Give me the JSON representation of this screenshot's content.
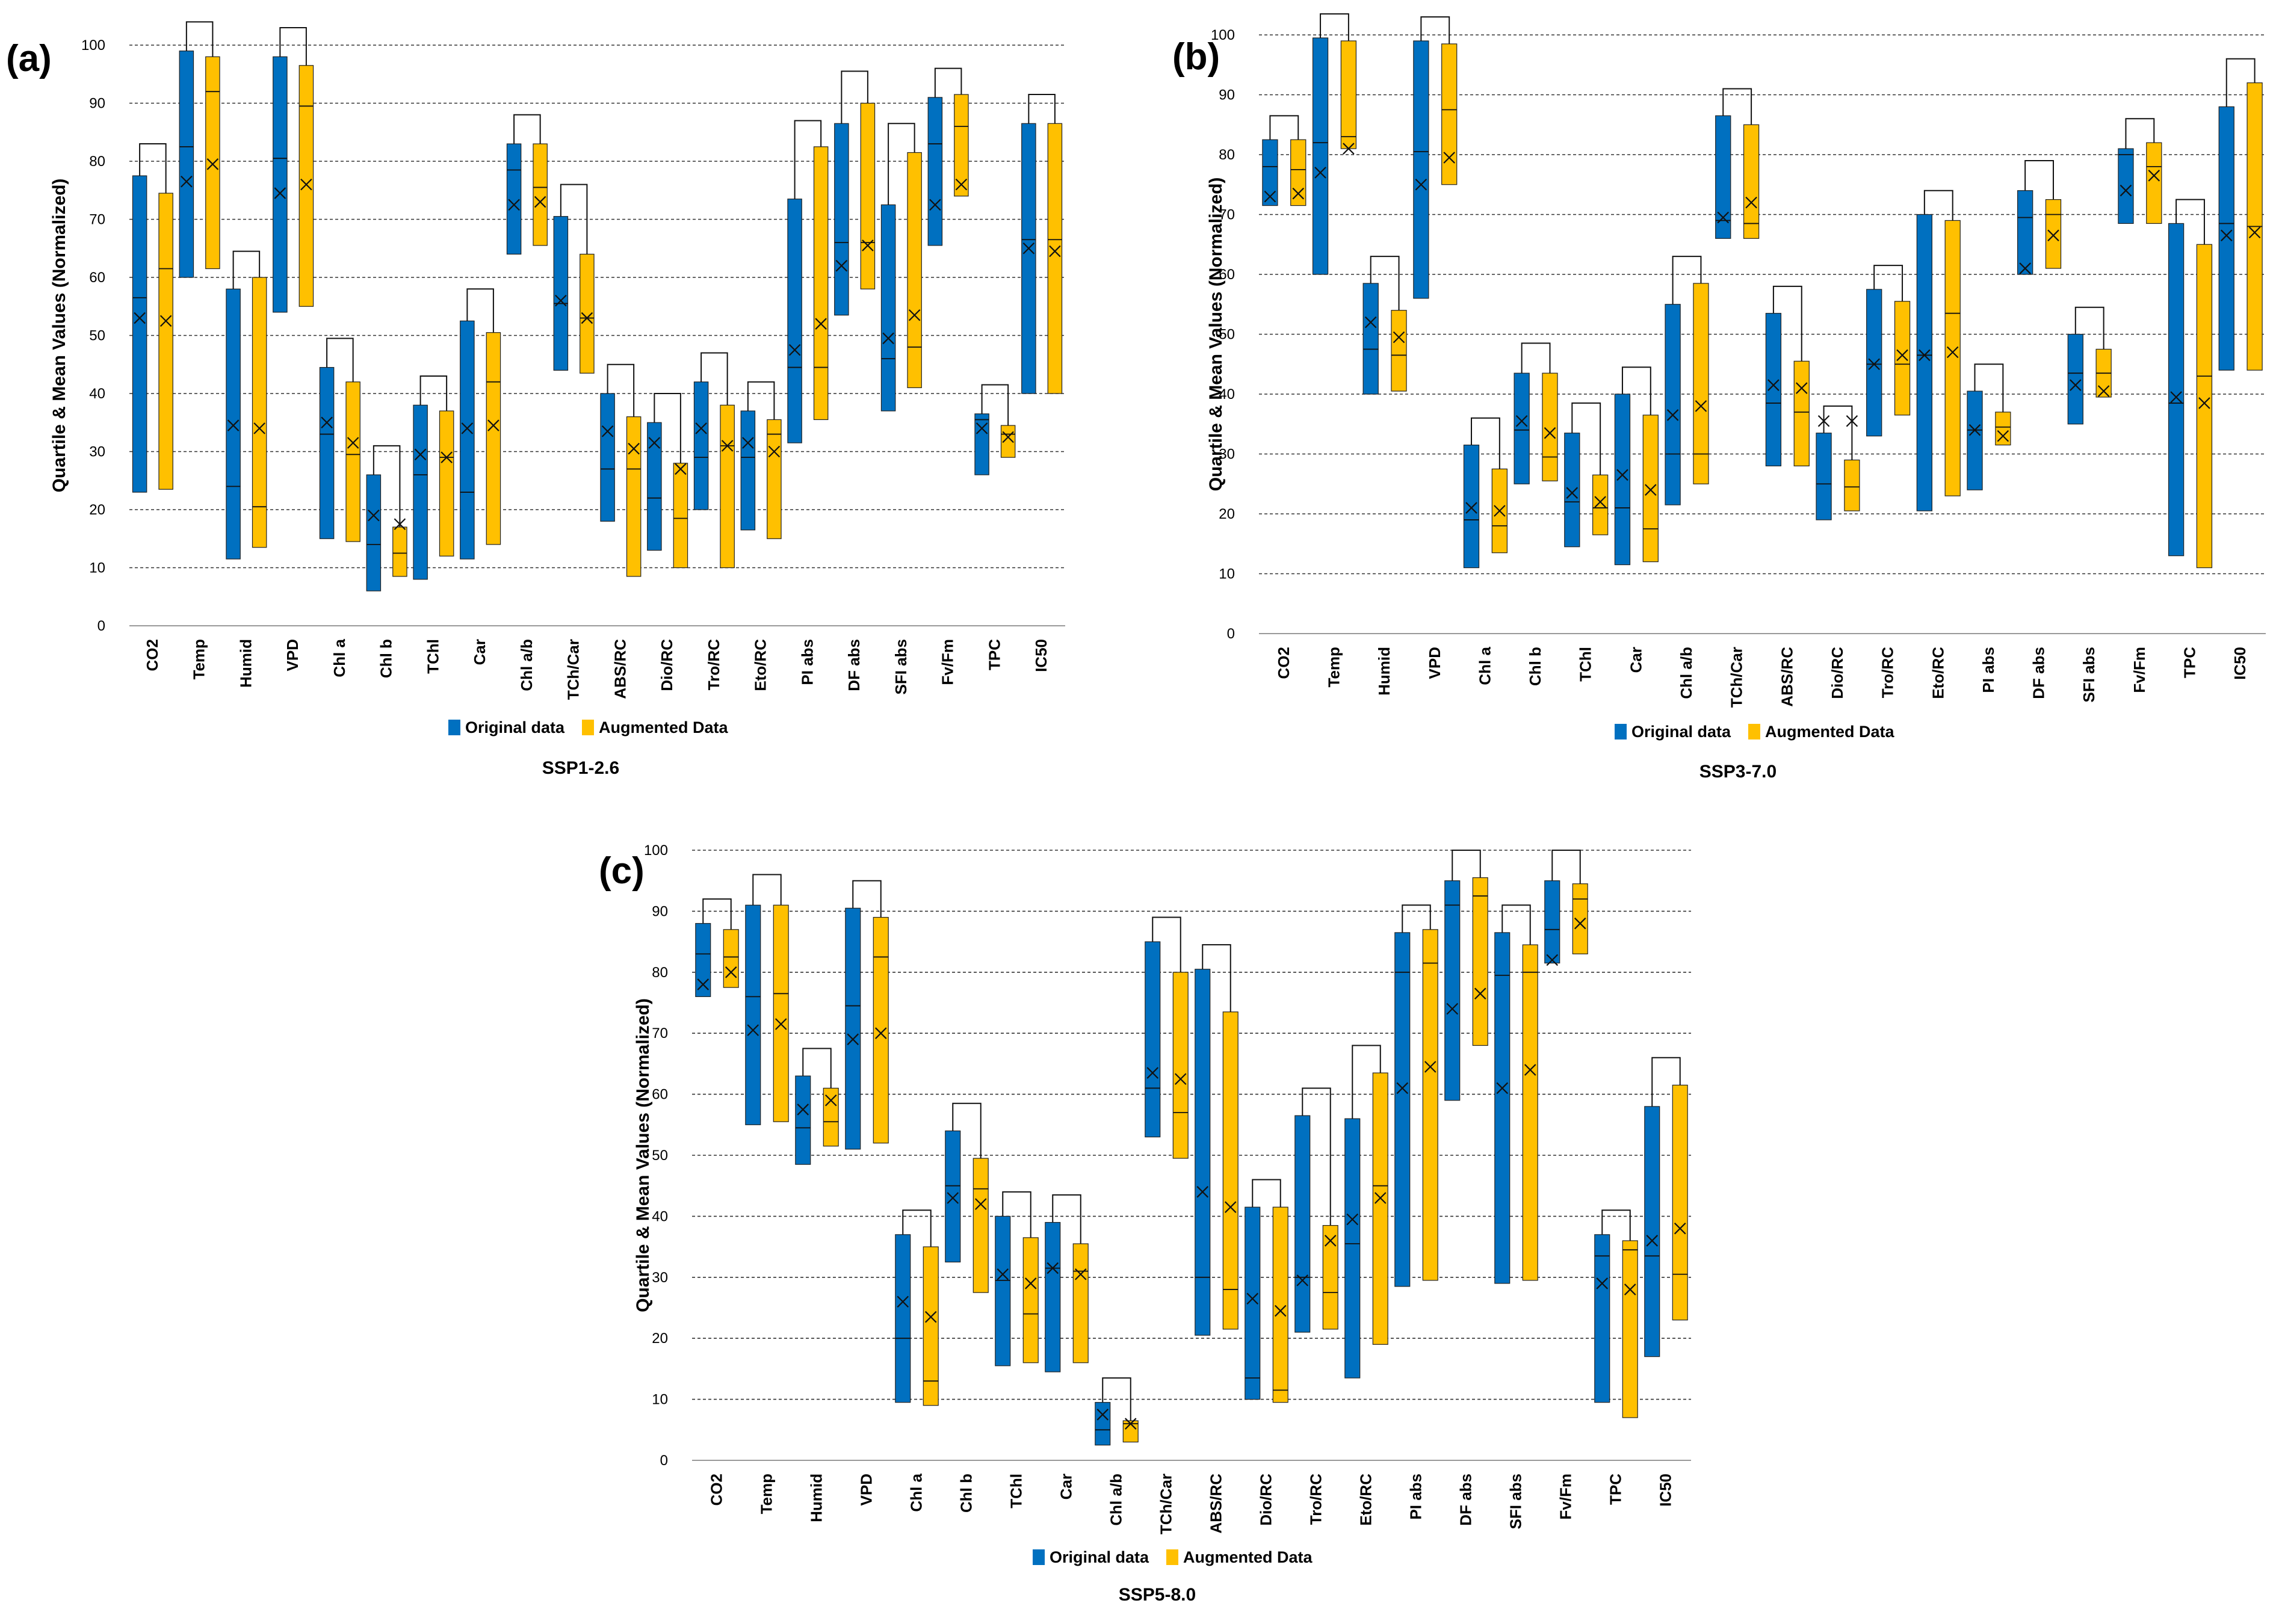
{
  "legend": {
    "original_label": "Original data",
    "augmented_label": "Augmented Data",
    "original_color": "#0070C0",
    "augmented_color": "#FFC000"
  },
  "chart_data": [
    {
      "type": "boxplot",
      "panel_label": "(a)",
      "title": "SSP1-2.6",
      "xlabel": "",
      "ylabel": "Quartile & Mean Values (Normalized)",
      "ylim": [
        0,
        100
      ],
      "yticks": [
        0,
        10,
        20,
        30,
        40,
        50,
        60,
        70,
        80,
        90,
        100
      ],
      "grid": true,
      "legend_position": "bottom",
      "categories": [
        "CO2",
        "Temp",
        "Humid",
        "VPD",
        "Chl a",
        "Chl b",
        "TChl",
        "Car",
        "Chl a/b",
        "TCh/Car",
        "ABS/RC",
        "Dio/RC",
        "Tro/RC",
        "Eto/RC",
        "PI abs",
        "DF abs",
        "SFI abs",
        "Fv/Fm",
        "TPC",
        "IC50"
      ],
      "series": [
        {
          "name": "Original data",
          "q1": [
            23,
            60,
            11.5,
            54,
            15,
            6,
            8,
            11.5,
            64,
            44,
            18,
            13,
            20,
            16.5,
            31.5,
            53.5,
            37,
            65.5,
            26,
            40
          ],
          "median": [
            56.5,
            82.5,
            24,
            80.5,
            33,
            14,
            26,
            23,
            78.5,
            55.5,
            27,
            22,
            29,
            29,
            44.5,
            66,
            46,
            83,
            35.5,
            66.5
          ],
          "q3": [
            77.5,
            99,
            58,
            98,
            44.5,
            26,
            38,
            52.5,
            83,
            70.5,
            40,
            35,
            42,
            37,
            73.5,
            86.5,
            72.5,
            91,
            36.5,
            86.5
          ],
          "mean": [
            53,
            76.5,
            34.5,
            74.5,
            35,
            19,
            29.5,
            34,
            72.5,
            56,
            33.5,
            31.5,
            34,
            31.5,
            47.5,
            62,
            49.5,
            72.5,
            34,
            65
          ]
        },
        {
          "name": "Augmented Data",
          "q1": [
            23.5,
            61.5,
            13.5,
            55,
            14.5,
            8.5,
            12,
            14,
            65.5,
            43.5,
            8.5,
            10,
            10,
            15,
            35.5,
            58,
            41,
            74,
            29,
            40
          ],
          "median": [
            61.5,
            92,
            20.5,
            89.5,
            29.5,
            12.5,
            29,
            42,
            75.5,
            53,
            27,
            18.5,
            31,
            33,
            44.5,
            66,
            48,
            86,
            33,
            66.5
          ],
          "q3": [
            74.5,
            98,
            60,
            96.5,
            42,
            17,
            37,
            50.5,
            83,
            64,
            36,
            28,
            38,
            35.5,
            82.5,
            90,
            81.5,
            91.5,
            34.5,
            86.5
          ],
          "mean": [
            52.5,
            79.5,
            34,
            76,
            31.5,
            17.5,
            29,
            34.5,
            73,
            53,
            30.5,
            27,
            31,
            30,
            52,
            65.5,
            53.5,
            76,
            32.5,
            64.5
          ]
        }
      ],
      "significance_caps": [
        83,
        104,
        64.5,
        103,
        49.5,
        31,
        43,
        58,
        88,
        76,
        45,
        40,
        47,
        42,
        87,
        95.5,
        86.5,
        96,
        41.5,
        91.5
      ]
    },
    {
      "type": "boxplot",
      "panel_label": "(b)",
      "title": "SSP3-7.0",
      "xlabel": "",
      "ylabel": "Quartile & Mean Values (Normalized)",
      "ylim": [
        0,
        100
      ],
      "yticks": [
        0,
        10,
        20,
        30,
        40,
        50,
        60,
        70,
        80,
        90,
        100
      ],
      "grid": true,
      "legend_position": "bottom",
      "categories": [
        "CO2",
        "Temp",
        "Humid",
        "VPD",
        "Chl a",
        "Chl b",
        "TChl",
        "Car",
        "Chl a/b",
        "TCh/Car",
        "ABS/RC",
        "Dio/RC",
        "Tro/RC",
        "Eto/RC",
        "PI abs",
        "DF abs",
        "SFI abs",
        "Fv/Fm",
        "TPC",
        "IC50"
      ],
      "series": [
        {
          "name": "Original data",
          "q1": [
            71.5,
            60,
            40,
            56,
            11,
            25,
            14.5,
            11.5,
            21.5,
            66,
            28,
            19,
            33,
            20.5,
            24,
            60,
            35,
            68.5,
            13,
            44
          ],
          "median": [
            78,
            82,
            47.5,
            80.5,
            19,
            34,
            22,
            21,
            30,
            69,
            38.5,
            25,
            45,
            46.5,
            34,
            69.5,
            43.5,
            80,
            38.5,
            68.5
          ],
          "q3": [
            82.5,
            99.5,
            58.5,
            99,
            31.5,
            43.5,
            33.5,
            40,
            55,
            86.5,
            53.5,
            33.5,
            57.5,
            70,
            40.5,
            74,
            50,
            81,
            68.5,
            88
          ],
          "mean": [
            73,
            77,
            52,
            75,
            21,
            35.5,
            23.5,
            26.5,
            36.5,
            69.5,
            41.5,
            35.5,
            45,
            46.5,
            34,
            61,
            41.5,
            74,
            39.5,
            66.5
          ]
        },
        {
          "name": "Augmented Data",
          "q1": [
            71.5,
            81,
            40.5,
            75,
            13.5,
            25.5,
            16.5,
            12,
            25,
            66,
            28,
            20.5,
            36.5,
            23,
            31.5,
            61,
            39.5,
            68.5,
            11,
            44
          ],
          "median": [
            77.5,
            83,
            46.5,
            87.5,
            18,
            29.5,
            21,
            17.5,
            30,
            68.5,
            37,
            24.5,
            45,
            53.5,
            34.5,
            70,
            43.5,
            78,
            43,
            68
          ],
          "q3": [
            82.5,
            99,
            54,
            98.5,
            27.5,
            43.5,
            26.5,
            36.5,
            58.5,
            85,
            45.5,
            29,
            55.5,
            69,
            37,
            72.5,
            47.5,
            82,
            65,
            92
          ],
          "mean": [
            73.5,
            81,
            49.5,
            79.5,
            20.5,
            33.5,
            22,
            24,
            38,
            72,
            41,
            35.5,
            46.5,
            47,
            33,
            66.5,
            40.5,
            76.5,
            38.5,
            67
          ]
        }
      ],
      "significance_caps": [
        86.5,
        103.5,
        63,
        103,
        36,
        48.5,
        38.5,
        44.5,
        63,
        91,
        58,
        38,
        61.5,
        74,
        45,
        79,
        54.5,
        86,
        72.5,
        96
      ]
    },
    {
      "type": "boxplot",
      "panel_label": "(c)",
      "title": "SSP5-8.0",
      "xlabel": "",
      "ylabel": "Quartile & Mean Values (Normalized)",
      "ylim": [
        0,
        100
      ],
      "yticks": [
        0,
        10,
        20,
        30,
        40,
        50,
        60,
        70,
        80,
        90,
        100
      ],
      "grid": true,
      "legend_position": "bottom",
      "categories": [
        "CO2",
        "Temp",
        "Humid",
        "VPD",
        "Chl a",
        "Chl b",
        "TChl",
        "Car",
        "Chl a/b",
        "TCh/Car",
        "ABS/RC",
        "Dio/RC",
        "Tro/RC",
        "Eto/RC",
        "PI abs",
        "DF abs",
        "SFI abs",
        "Fv/Fm",
        "TPC",
        "IC50"
      ],
      "series": [
        {
          "name": "Original data",
          "q1": [
            76,
            55,
            48.5,
            51,
            9.5,
            32.5,
            15.5,
            14.5,
            2.5,
            53,
            20.5,
            10,
            21,
            13.5,
            28.5,
            59,
            29,
            81.5,
            9.5,
            17
          ],
          "median": [
            83,
            76,
            54.5,
            74.5,
            20,
            45,
            29.5,
            31.5,
            5,
            61,
            30,
            13.5,
            30,
            35.5,
            80,
            91,
            79.5,
            87,
            33.5,
            33.5
          ],
          "q3": [
            88,
            91,
            63,
            90.5,
            37,
            54,
            40,
            39,
            9.5,
            85,
            80.5,
            41.5,
            56.5,
            56,
            86.5,
            95,
            86.5,
            95,
            37,
            58
          ],
          "mean": [
            78,
            70.5,
            57.5,
            69,
            26,
            43,
            30.5,
            31.5,
            7.5,
            63.5,
            44,
            26.5,
            29.5,
            39.5,
            61,
            74,
            61,
            82,
            29,
            36
          ]
        },
        {
          "name": "Augmented Data",
          "q1": [
            77.5,
            55.5,
            51.5,
            52,
            9,
            27.5,
            16,
            16,
            3,
            49.5,
            21.5,
            9.5,
            21.5,
            19,
            29.5,
            68,
            29.5,
            83,
            7,
            23
          ],
          "median": [
            82.5,
            76.5,
            55.5,
            82.5,
            13,
            44.5,
            24,
            31,
            6,
            57,
            28,
            11.5,
            27.5,
            45,
            81.5,
            92.5,
            80,
            92,
            34.5,
            30.5
          ],
          "q3": [
            87,
            91,
            61,
            89,
            35,
            49.5,
            36.5,
            35.5,
            6.5,
            80,
            73.5,
            41.5,
            38.5,
            63.5,
            87,
            95.5,
            84.5,
            94.5,
            36,
            61.5
          ],
          "mean": [
            80,
            71.5,
            59,
            70,
            23.5,
            42,
            29,
            30.5,
            6,
            62.5,
            41.5,
            24.5,
            36,
            43,
            64.5,
            76.5,
            64,
            88,
            28,
            38
          ]
        }
      ],
      "significance_caps": [
        92,
        96,
        67.5,
        95,
        41,
        58.5,
        44,
        43.5,
        13.5,
        89,
        84.5,
        46,
        61,
        68,
        91,
        100,
        91,
        100,
        41,
        66
      ]
    }
  ]
}
